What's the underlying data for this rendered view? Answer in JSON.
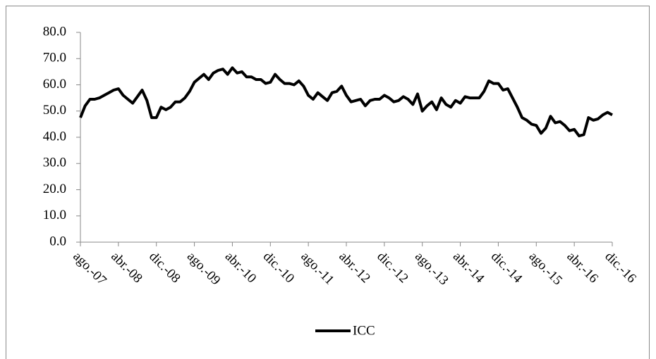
{
  "chart_data": {
    "type": "line",
    "categories": [
      "ago.-07",
      null,
      null,
      null,
      null,
      null,
      null,
      null,
      "abr.-08",
      null,
      null,
      null,
      null,
      null,
      null,
      null,
      "dic.-08",
      null,
      null,
      null,
      null,
      null,
      null,
      null,
      "ago.-09",
      null,
      null,
      null,
      null,
      null,
      null,
      null,
      "abr.-10",
      null,
      null,
      null,
      null,
      null,
      null,
      null,
      "dic.-10",
      null,
      null,
      null,
      null,
      null,
      null,
      null,
      "ago.-11",
      null,
      null,
      null,
      null,
      null,
      null,
      null,
      "abr.-12",
      null,
      null,
      null,
      null,
      null,
      null,
      null,
      "dic.-12",
      null,
      null,
      null,
      null,
      null,
      null,
      null,
      "ago.-13",
      null,
      null,
      null,
      null,
      null,
      null,
      null,
      "abr.-14",
      null,
      null,
      null,
      null,
      null,
      null,
      null,
      "dic.-14",
      null,
      null,
      null,
      null,
      null,
      null,
      null,
      "ago.-15",
      null,
      null,
      null,
      null,
      null,
      null,
      null,
      "abr.-16",
      null,
      null,
      null,
      null,
      null,
      null,
      null,
      "dic.-16"
    ],
    "series": [
      {
        "name": "ICC",
        "color": "#000000",
        "values": [
          47.5,
          52,
          54.5,
          54.5,
          55,
          56,
          57,
          58,
          58.5,
          56,
          54.5,
          53,
          55.5,
          58,
          54,
          47.5,
          47.5,
          51.5,
          50.5,
          51.5,
          53.5,
          53.5,
          55,
          57.5,
          61,
          62.5,
          64,
          62,
          64.5,
          65.5,
          66,
          64,
          66.5,
          64.5,
          65,
          63,
          63,
          62,
          62,
          60.5,
          61,
          64,
          62,
          60.5,
          60.5,
          60,
          61.5,
          59.5,
          56,
          54.5,
          57,
          55.5,
          54,
          57,
          57.5,
          59.5,
          56,
          53.5,
          54,
          54.5,
          52,
          54,
          54.5,
          54.5,
          56,
          55,
          53.5,
          54,
          55.5,
          54.5,
          52.5,
          56.5,
          50,
          52,
          53.5,
          50.5,
          55,
          52.5,
          51.5,
          54,
          53,
          55.5,
          55,
          55,
          55,
          57.5,
          61.5,
          60.5,
          60.5,
          58,
          58.5,
          55,
          51.5,
          47.5,
          46.5,
          45,
          44.5,
          41.5,
          43.5,
          48,
          45.5,
          46,
          44.5,
          42.5,
          43,
          40.5,
          41,
          47.5,
          46.5,
          47,
          48.5,
          49.5,
          48.5
        ]
      }
    ],
    "ylim": [
      0,
      80
    ],
    "yticks": [
      {
        "value": 0,
        "label": "0.0"
      },
      {
        "value": 10,
        "label": "10.0"
      },
      {
        "value": 20,
        "label": "20.0"
      },
      {
        "value": 30,
        "label": "30.0"
      },
      {
        "value": 40,
        "label": "40.0"
      },
      {
        "value": 50,
        "label": "50.0"
      },
      {
        "value": 60,
        "label": "60.0"
      },
      {
        "value": 70,
        "label": "70.0"
      },
      {
        "value": 80,
        "label": "80.0"
      }
    ],
    "legend": "bottom"
  }
}
